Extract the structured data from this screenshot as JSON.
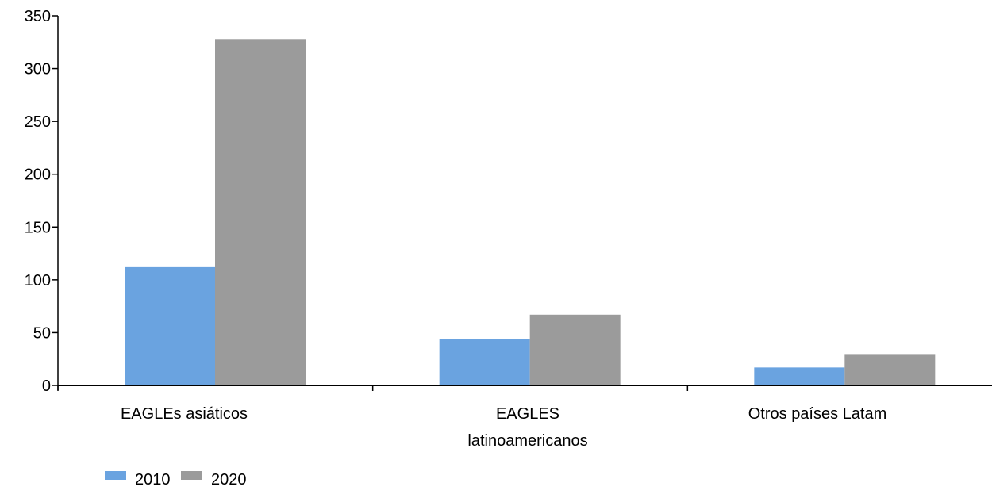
{
  "chart_data": {
    "type": "bar",
    "categories": [
      [
        "EAGLEs asiáticos"
      ],
      [
        "EAGLES",
        "latinoamericanos"
      ],
      [
        "Otros países Latam"
      ]
    ],
    "series": [
      {
        "name": "2010",
        "values": [
          112,
          44,
          17
        ],
        "color": "#6aa3e0"
      },
      {
        "name": "2020",
        "values": [
          328,
          67,
          29
        ],
        "color": "#9b9b9b"
      }
    ],
    "ylim": [
      0,
      350
    ],
    "yticks": [
      0,
      50,
      100,
      150,
      200,
      250,
      300,
      350
    ],
    "grid": false,
    "legend_position": "bottom-left"
  }
}
